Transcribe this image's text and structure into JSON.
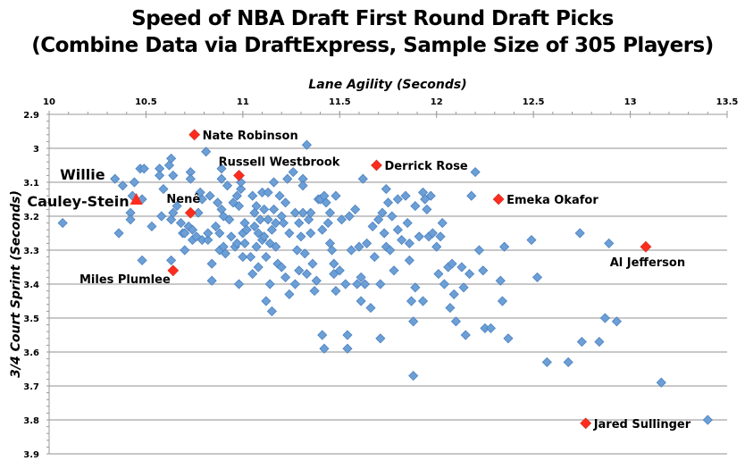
{
  "chart_data": {
    "type": "scatter",
    "title": [
      "Speed of NBA Draft First Round Draft Picks",
      "(Combine Data via DraftExpress, Sample Size of 305 Players)"
    ],
    "xlabel": "Lane Agility (Seconds)",
    "ylabel": "3/4 Court Sprint (Seconds)",
    "xlim": [
      10,
      13.5
    ],
    "ylim": [
      2.9,
      3.9
    ],
    "y_reversed": true,
    "x_axis_position": "top",
    "x_ticks": [
      "10",
      "10.5",
      "11",
      "11.5",
      "12",
      "12.5",
      "13",
      "13.5"
    ],
    "y_ticks": [
      "2.9",
      "3",
      "3.1",
      "3.2",
      "3.3",
      "3.4",
      "3.5",
      "3.6",
      "3.7",
      "3.8",
      "3.9"
    ],
    "grid": "horizontal",
    "colors": {
      "points": "#6b9fd6",
      "points_edge": "#4c80bf",
      "highlight": "#ff2b1c",
      "grid": "#c8c8c8"
    },
    "highlighted": [
      {
        "name": "Nate Robinson",
        "x": 10.75,
        "y": 2.96,
        "marker": "diamond",
        "label_side": "right"
      },
      {
        "name": "Russell Westbrook",
        "x": 10.98,
        "y": 3.08,
        "marker": "diamond",
        "label_side": "above"
      },
      {
        "name": "Derrick Rose",
        "x": 11.69,
        "y": 3.05,
        "marker": "diamond",
        "label_side": "right"
      },
      {
        "name": "Emeka Okafor",
        "x": 12.32,
        "y": 3.15,
        "marker": "diamond",
        "label_side": "right"
      },
      {
        "name": "Nenê",
        "x": 10.73,
        "y": 3.19,
        "marker": "diamond",
        "label_side": "above"
      },
      {
        "name": "Al Jefferson",
        "x": 13.08,
        "y": 3.29,
        "marker": "diamond",
        "label_side": "below"
      },
      {
        "name": "Miles Plumlee",
        "x": 10.64,
        "y": 3.36,
        "marker": "diamond",
        "label_side": "below-left"
      },
      {
        "name": "Jared Sullinger",
        "x": 12.77,
        "y": 3.81,
        "marker": "diamond",
        "label_side": "right"
      },
      {
        "name": "Willie Cauley-Stein",
        "label_lines": [
          "Willie",
          "Cauley-Stein"
        ],
        "x": 10.45,
        "y": 3.15,
        "marker": "triangle",
        "label_side": "left"
      }
    ],
    "points": [
      [
        10.07,
        3.22
      ],
      [
        10.34,
        3.09
      ],
      [
        10.36,
        3.25
      ],
      [
        10.38,
        3.11
      ],
      [
        10.42,
        3.19
      ],
      [
        10.42,
        3.21
      ],
      [
        10.44,
        3.1
      ],
      [
        10.43,
        3.14
      ],
      [
        10.47,
        3.06
      ],
      [
        10.49,
        3.06
      ],
      [
        10.48,
        3.15
      ],
      [
        10.48,
        3.33
      ],
      [
        10.53,
        3.23
      ],
      [
        10.57,
        3.06
      ],
      [
        10.57,
        3.08
      ],
      [
        10.58,
        3.2
      ],
      [
        10.59,
        3.12
      ],
      [
        10.62,
        3.05
      ],
      [
        10.63,
        3.03
      ],
      [
        10.64,
        3.08
      ],
      [
        10.63,
        3.21
      ],
      [
        10.64,
        3.19
      ],
      [
        10.63,
        3.33
      ],
      [
        10.66,
        3.17
      ],
      [
        10.68,
        3.22
      ],
      [
        10.69,
        3.25
      ],
      [
        10.7,
        3.25
      ],
      [
        10.7,
        3.3
      ],
      [
        10.72,
        3.23
      ],
      [
        10.73,
        3.07
      ],
      [
        10.73,
        3.09
      ],
      [
        10.74,
        3.24
      ],
      [
        10.74,
        3.27
      ],
      [
        10.76,
        3.26
      ],
      [
        10.77,
        3.19
      ],
      [
        10.78,
        3.13
      ],
      [
        10.79,
        3.15
      ],
      [
        10.79,
        3.27
      ],
      [
        10.81,
        3.01
      ],
      [
        10.82,
        3.27
      ],
      [
        10.82,
        3.25
      ],
      [
        10.83,
        3.14
      ],
      [
        10.84,
        3.34
      ],
      [
        10.84,
        3.39
      ],
      [
        10.86,
        3.23
      ],
      [
        10.87,
        3.16
      ],
      [
        10.88,
        3.25
      ],
      [
        10.88,
        3.3
      ],
      [
        10.89,
        3.06
      ],
      [
        10.89,
        3.09
      ],
      [
        10.89,
        3.18
      ],
      [
        10.9,
        3.2
      ],
      [
        10.9,
        3.29
      ],
      [
        10.91,
        3.31
      ],
      [
        10.92,
        3.11
      ],
      [
        10.93,
        3.21
      ],
      [
        10.94,
        3.26
      ],
      [
        10.95,
        3.16
      ],
      [
        10.96,
        3.29
      ],
      [
        10.97,
        3.14
      ],
      [
        10.98,
        3.17
      ],
      [
        10.97,
        3.28
      ],
      [
        10.98,
        3.4
      ],
      [
        10.99,
        3.12
      ],
      [
        10.99,
        3.1
      ],
      [
        11.0,
        3.25
      ],
      [
        11.0,
        3.32
      ],
      [
        11.01,
        3.28
      ],
      [
        11.01,
        3.22
      ],
      [
        11.02,
        3.24
      ],
      [
        11.04,
        3.32
      ],
      [
        11.05,
        3.14
      ],
      [
        11.05,
        3.37
      ],
      [
        11.06,
        3.19
      ],
      [
        11.06,
        3.23
      ],
      [
        11.07,
        3.29
      ],
      [
        11.07,
        3.17
      ],
      [
        11.08,
        3.35
      ],
      [
        11.08,
        3.25
      ],
      [
        11.09,
        3.21
      ],
      [
        11.1,
        3.13
      ],
      [
        11.1,
        3.27
      ],
      [
        11.11,
        3.18
      ],
      [
        11.11,
        3.26
      ],
      [
        11.12,
        3.32
      ],
      [
        11.12,
        3.45
      ],
      [
        11.13,
        3.13
      ],
      [
        11.13,
        3.21
      ],
      [
        11.14,
        3.28
      ],
      [
        11.14,
        3.4
      ],
      [
        11.15,
        3.24
      ],
      [
        11.15,
        3.48
      ],
      [
        11.16,
        3.1
      ],
      [
        11.16,
        3.18
      ],
      [
        11.17,
        3.22
      ],
      [
        11.17,
        3.29
      ],
      [
        11.18,
        3.34
      ],
      [
        11.19,
        3.14
      ],
      [
        11.2,
        3.2
      ],
      [
        11.2,
        3.35
      ],
      [
        11.21,
        3.22
      ],
      [
        11.22,
        3.16
      ],
      [
        11.22,
        3.38
      ],
      [
        11.23,
        3.09
      ],
      [
        11.24,
        3.25
      ],
      [
        11.24,
        3.43
      ],
      [
        11.26,
        3.07
      ],
      [
        11.27,
        3.19
      ],
      [
        11.27,
        3.4
      ],
      [
        11.28,
        3.3
      ],
      [
        11.29,
        3.22
      ],
      [
        11.29,
        3.36
      ],
      [
        11.3,
        3.26
      ],
      [
        11.31,
        3.09
      ],
      [
        11.31,
        3.11
      ],
      [
        11.31,
        3.19
      ],
      [
        11.32,
        3.31
      ],
      [
        11.33,
        2.99
      ],
      [
        11.33,
        3.37
      ],
      [
        11.34,
        3.21
      ],
      [
        11.35,
        3.19
      ],
      [
        11.35,
        3.25
      ],
      [
        11.36,
        3.34
      ],
      [
        11.37,
        3.42
      ],
      [
        11.38,
        3.39
      ],
      [
        11.39,
        3.15
      ],
      [
        11.4,
        3.15
      ],
      [
        11.41,
        3.24
      ],
      [
        11.41,
        3.55
      ],
      [
        11.42,
        3.14
      ],
      [
        11.42,
        3.59
      ],
      [
        11.43,
        3.16
      ],
      [
        11.44,
        3.22
      ],
      [
        11.45,
        3.19
      ],
      [
        11.45,
        3.28
      ],
      [
        11.46,
        3.3
      ],
      [
        11.47,
        3.34
      ],
      [
        11.47,
        3.37
      ],
      [
        11.48,
        3.14
      ],
      [
        11.48,
        3.42
      ],
      [
        11.5,
        3.36
      ],
      [
        11.51,
        3.21
      ],
      [
        11.53,
        3.4
      ],
      [
        11.54,
        3.55
      ],
      [
        11.54,
        3.59
      ],
      [
        11.55,
        3.2
      ],
      [
        11.56,
        3.3
      ],
      [
        11.58,
        3.18
      ],
      [
        11.59,
        3.4
      ],
      [
        11.6,
        3.29
      ],
      [
        11.61,
        3.38
      ],
      [
        11.61,
        3.45
      ],
      [
        11.62,
        3.09
      ],
      [
        11.63,
        3.4
      ],
      [
        11.64,
        3.28
      ],
      [
        11.66,
        3.47
      ],
      [
        11.67,
        3.23
      ],
      [
        11.68,
        3.32
      ],
      [
        11.7,
        3.21
      ],
      [
        11.71,
        3.56
      ],
      [
        11.71,
        3.4
      ],
      [
        11.72,
        3.19
      ],
      [
        11.73,
        3.25
      ],
      [
        11.74,
        3.12
      ],
      [
        11.74,
        3.29
      ],
      [
        11.75,
        3.16
      ],
      [
        11.76,
        3.3
      ],
      [
        11.77,
        3.2
      ],
      [
        11.78,
        3.36
      ],
      [
        11.8,
        3.15
      ],
      [
        11.8,
        3.24
      ],
      [
        11.82,
        3.27
      ],
      [
        11.84,
        3.14
      ],
      [
        11.85,
        3.22
      ],
      [
        11.86,
        3.28
      ],
      [
        11.86,
        3.33
      ],
      [
        11.87,
        3.45
      ],
      [
        11.88,
        3.51
      ],
      [
        11.88,
        3.67
      ],
      [
        11.89,
        3.17
      ],
      [
        11.89,
        3.41
      ],
      [
        11.91,
        3.26
      ],
      [
        11.93,
        3.13
      ],
      [
        11.93,
        3.45
      ],
      [
        11.94,
        3.15
      ],
      [
        11.95,
        3.18
      ],
      [
        11.96,
        3.26
      ],
      [
        11.97,
        3.14
      ],
      [
        11.98,
        3.25
      ],
      [
        12.0,
        3.29
      ],
      [
        12.01,
        3.37
      ],
      [
        12.02,
        3.26
      ],
      [
        12.03,
        3.22
      ],
      [
        12.04,
        3.4
      ],
      [
        12.06,
        3.35
      ],
      [
        12.07,
        3.47
      ],
      [
        12.08,
        3.34
      ],
      [
        12.09,
        3.43
      ],
      [
        12.1,
        3.51
      ],
      [
        12.13,
        3.35
      ],
      [
        12.14,
        3.41
      ],
      [
        12.15,
        3.55
      ],
      [
        12.17,
        3.37
      ],
      [
        12.18,
        3.14
      ],
      [
        12.2,
        3.07
      ],
      [
        12.22,
        3.3
      ],
      [
        12.24,
        3.36
      ],
      [
        12.25,
        3.53
      ],
      [
        12.28,
        3.53
      ],
      [
        12.33,
        3.39
      ],
      [
        12.34,
        3.45
      ],
      [
        12.35,
        3.29
      ],
      [
        12.37,
        3.56
      ],
      [
        12.49,
        3.27
      ],
      [
        12.52,
        3.38
      ],
      [
        12.57,
        3.63
      ],
      [
        12.68,
        3.63
      ],
      [
        12.74,
        3.25
      ],
      [
        12.75,
        3.57
      ],
      [
        12.84,
        3.57
      ],
      [
        12.87,
        3.5
      ],
      [
        12.89,
        3.28
      ],
      [
        12.93,
        3.51
      ],
      [
        13.16,
        3.69
      ],
      [
        13.4,
        3.8
      ]
    ]
  }
}
